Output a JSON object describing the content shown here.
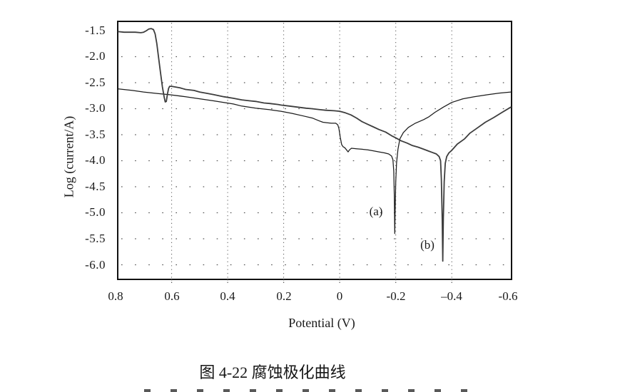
{
  "colors": {
    "frame": "#111111",
    "grid": "#555555",
    "text": "#1a1a1a",
    "curve_a": "#1c1c1c",
    "curve_b": "#3d3d3d"
  },
  "chart_data": {
    "type": "line",
    "title": "图 4-22 腐蚀极化曲线",
    "xlabel": "Potential (V)",
    "ylabel": "Log (current/A)",
    "x_axis_reversed": true,
    "grid": "dotted",
    "xlim_left_to_right": [
      0.79,
      -0.611
    ],
    "ylim_top_to_bottom": [
      -1.336,
      -6.267
    ],
    "x_tick_values": [
      0.8,
      0.6,
      0.4,
      0.2,
      0,
      -0.2,
      -0.4,
      -0.6
    ],
    "x_tick_labels": [
      "0.8",
      "0.6",
      "0.4",
      "0.2",
      "0",
      "-0.2",
      "–0.4",
      "-0.6"
    ],
    "y_tick_values": [
      -1.5,
      -2.0,
      -2.5,
      -3.0,
      -3.5,
      -4.0,
      -4.5,
      -5.0,
      -5.5,
      -6.0
    ],
    "y_tick_labels": [
      "-1.5",
      "-2.0",
      "-2.5",
      "-3.0",
      "-3.5",
      "-4.0",
      "-4.5",
      "-5.0",
      "-5.5",
      "-6.0"
    ],
    "gridline_x_values": [
      0.6,
      0.4,
      0.2,
      0,
      -0.2,
      -0.4
    ],
    "gridline_y_values": [
      -2.0,
      -2.5,
      -3.0,
      -3.5,
      -4.0,
      -4.5,
      -5.0,
      -5.5,
      -6.0
    ],
    "annotations": [
      {
        "text": "(a)",
        "V": -0.13,
        "logI": -4.98
      },
      {
        "text": "(b)",
        "V": -0.312,
        "logI": -5.62
      }
    ],
    "series": [
      {
        "name": "(a)",
        "points": [
          [
            0.79,
            -2.62
          ],
          [
            0.74,
            -2.65
          ],
          [
            0.7,
            -2.68
          ],
          [
            0.65,
            -2.71
          ],
          [
            0.61,
            -2.73
          ],
          [
            0.55,
            -2.77
          ],
          [
            0.5,
            -2.81
          ],
          [
            0.45,
            -2.85
          ],
          [
            0.414,
            -2.88
          ],
          [
            0.38,
            -2.91
          ],
          [
            0.35,
            -2.95
          ],
          [
            0.3,
            -2.99
          ],
          [
            0.25,
            -3.02
          ],
          [
            0.21,
            -3.05
          ],
          [
            0.17,
            -3.09
          ],
          [
            0.13,
            -3.14
          ],
          [
            0.098,
            -3.18
          ],
          [
            0.075,
            -3.23
          ],
          [
            0.06,
            -3.26
          ],
          [
            0.045,
            -3.27
          ],
          [
            0.03,
            -3.28
          ],
          [
            0.014,
            -3.28
          ],
          [
            0.007,
            -3.31
          ],
          [
            0.003,
            -3.38
          ],
          [
            -0.002,
            -3.55
          ],
          [
            -0.007,
            -3.69
          ],
          [
            -0.012,
            -3.73
          ],
          [
            -0.018,
            -3.75
          ],
          [
            -0.024,
            -3.79
          ],
          [
            -0.03,
            -3.83
          ],
          [
            -0.035,
            -3.79
          ],
          [
            -0.042,
            -3.76
          ],
          [
            -0.06,
            -3.77
          ],
          [
            -0.08,
            -3.78
          ],
          [
            -0.1,
            -3.79
          ],
          [
            -0.12,
            -3.81
          ],
          [
            -0.14,
            -3.83
          ],
          [
            -0.16,
            -3.85
          ],
          [
            -0.175,
            -3.87
          ],
          [
            -0.185,
            -3.91
          ],
          [
            -0.19,
            -3.98
          ],
          [
            -0.193,
            -4.2
          ],
          [
            -0.195,
            -4.7
          ],
          [
            -0.1965,
            -5.4
          ],
          [
            -0.198,
            -4.9
          ],
          [
            -0.2,
            -4.4
          ],
          [
            -0.203,
            -4.05
          ],
          [
            -0.208,
            -3.78
          ],
          [
            -0.215,
            -3.58
          ],
          [
            -0.227,
            -3.46
          ],
          [
            -0.245,
            -3.36
          ],
          [
            -0.27,
            -3.28
          ],
          [
            -0.3,
            -3.21
          ],
          [
            -0.317,
            -3.16
          ],
          [
            -0.34,
            -3.07
          ],
          [
            -0.37,
            -2.97
          ],
          [
            -0.4,
            -2.88
          ],
          [
            -0.44,
            -2.81
          ],
          [
            -0.48,
            -2.77
          ],
          [
            -0.53,
            -2.73
          ],
          [
            -0.57,
            -2.7
          ],
          [
            -0.611,
            -2.68
          ]
        ]
      },
      {
        "name": "(b)",
        "points": [
          [
            0.79,
            -1.52
          ],
          [
            0.77,
            -1.53
          ],
          [
            0.75,
            -1.53
          ],
          [
            0.73,
            -1.53
          ],
          [
            0.71,
            -1.54
          ],
          [
            0.7,
            -1.53
          ],
          [
            0.69,
            -1.5
          ],
          [
            0.682,
            -1.47
          ],
          [
            0.673,
            -1.46
          ],
          [
            0.665,
            -1.48
          ],
          [
            0.659,
            -1.56
          ],
          [
            0.653,
            -1.75
          ],
          [
            0.647,
            -2.0
          ],
          [
            0.64,
            -2.3
          ],
          [
            0.633,
            -2.58
          ],
          [
            0.627,
            -2.77
          ],
          [
            0.623,
            -2.87
          ],
          [
            0.619,
            -2.86
          ],
          [
            0.615,
            -2.72
          ],
          [
            0.611,
            -2.61
          ],
          [
            0.607,
            -2.57
          ],
          [
            0.6,
            -2.57
          ],
          [
            0.57,
            -2.6
          ],
          [
            0.55,
            -2.63
          ],
          [
            0.52,
            -2.65
          ],
          [
            0.5,
            -2.68
          ],
          [
            0.47,
            -2.71
          ],
          [
            0.45,
            -2.73
          ],
          [
            0.414,
            -2.77
          ],
          [
            0.38,
            -2.8
          ],
          [
            0.35,
            -2.83
          ],
          [
            0.32,
            -2.85
          ],
          [
            0.3,
            -2.86
          ],
          [
            0.27,
            -2.89
          ],
          [
            0.25,
            -2.9
          ],
          [
            0.22,
            -2.92
          ],
          [
            0.21,
            -2.93
          ],
          [
            0.18,
            -2.95
          ],
          [
            0.15,
            -2.97
          ],
          [
            0.12,
            -2.99
          ],
          [
            0.1,
            -3.0
          ],
          [
            0.07,
            -3.02
          ],
          [
            0.05,
            -3.03
          ],
          [
            0.02,
            -3.04
          ],
          [
            0.0,
            -3.05
          ],
          [
            -0.02,
            -3.08
          ],
          [
            -0.04,
            -3.12
          ],
          [
            -0.06,
            -3.18
          ],
          [
            -0.08,
            -3.25
          ],
          [
            -0.1,
            -3.3
          ],
          [
            -0.12,
            -3.35
          ],
          [
            -0.14,
            -3.4
          ],
          [
            -0.164,
            -3.45
          ],
          [
            -0.185,
            -3.52
          ],
          [
            -0.2,
            -3.56
          ],
          [
            -0.22,
            -3.62
          ],
          [
            -0.24,
            -3.66
          ],
          [
            -0.26,
            -3.71
          ],
          [
            -0.28,
            -3.74
          ],
          [
            -0.3,
            -3.78
          ],
          [
            -0.315,
            -3.81
          ],
          [
            -0.33,
            -3.84
          ],
          [
            -0.345,
            -3.87
          ],
          [
            -0.355,
            -3.92
          ],
          [
            -0.36,
            -4.0
          ],
          [
            -0.363,
            -4.35
          ],
          [
            -0.366,
            -5.1
          ],
          [
            -0.368,
            -5.93
          ],
          [
            -0.37,
            -5.1
          ],
          [
            -0.373,
            -4.4
          ],
          [
            -0.377,
            -4.05
          ],
          [
            -0.382,
            -3.92
          ],
          [
            -0.39,
            -3.85
          ],
          [
            -0.4,
            -3.8
          ],
          [
            -0.42,
            -3.68
          ],
          [
            -0.446,
            -3.58
          ],
          [
            -0.465,
            -3.47
          ],
          [
            -0.489,
            -3.38
          ],
          [
            -0.52,
            -3.26
          ],
          [
            -0.55,
            -3.17
          ],
          [
            -0.58,
            -3.07
          ],
          [
            -0.611,
            -2.97
          ]
        ]
      }
    ]
  }
}
